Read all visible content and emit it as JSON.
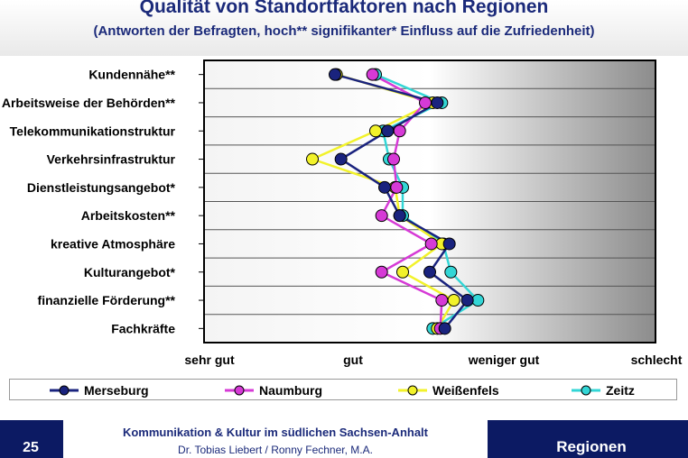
{
  "slide": {
    "title": "Qualität von Standortfaktoren nach Regionen",
    "subtitle": "(Antworten der Befragten, hoch** signifikanter* Einfluss auf die Zufriedenheit)",
    "page_number": "25",
    "footer_line1": "Kommunikation & Kultur im südlichen Sachsen-Anhalt",
    "footer_line2": "Dr. Tobias Liebert / Ronny Fechner, M.A.",
    "section_label": "Regionen"
  },
  "chart_data": {
    "type": "line",
    "orientation": "horizontal",
    "title": "Qualität von Standortfaktoren nach Regionen",
    "subtitle": "(Antworten der Befragten, hoch** signifikanter* Einfluss auf die Zufriedenheit)",
    "categories": [
      "Kundennähe**",
      "Arbeitsweise der Behörden**",
      "Telekommunikationstruktur",
      "Verkehrsinfrastruktur",
      "Dienstleistungsangebot*",
      "Arbeitskosten**",
      "kreative Atmosphäre",
      "Kulturangebot*",
      "finanzielle Förderung**",
      "Fachkräfte"
    ],
    "x_tick_labels": [
      "sehr gut",
      "gut",
      "weniger gut",
      "schlecht"
    ],
    "x_tick_values": [
      1,
      2,
      3,
      4
    ],
    "xlim": [
      1,
      4
    ],
    "legend_position": "bottom",
    "series": [
      {
        "name": "Merseburg",
        "color": "#1a237e",
        "values": [
          1.87,
          2.55,
          2.22,
          1.91,
          2.2,
          2.3,
          2.63,
          2.5,
          2.75,
          2.6
        ]
      },
      {
        "name": "Naumburg",
        "color": "#d63ad6",
        "values": [
          2.12,
          2.47,
          2.3,
          2.26,
          2.28,
          2.18,
          2.51,
          2.18,
          2.58,
          2.57
        ]
      },
      {
        "name": "Weißenfels",
        "color": "#f2f22a",
        "values": [
          1.88,
          2.52,
          2.14,
          1.72,
          2.27,
          2.3,
          2.58,
          2.32,
          2.66,
          2.55
        ]
      },
      {
        "name": "Zeitz",
        "color": "#33d6d6",
        "values": [
          2.14,
          2.58,
          2.19,
          2.23,
          2.32,
          2.32,
          2.59,
          2.64,
          2.82,
          2.52
        ]
      }
    ]
  }
}
